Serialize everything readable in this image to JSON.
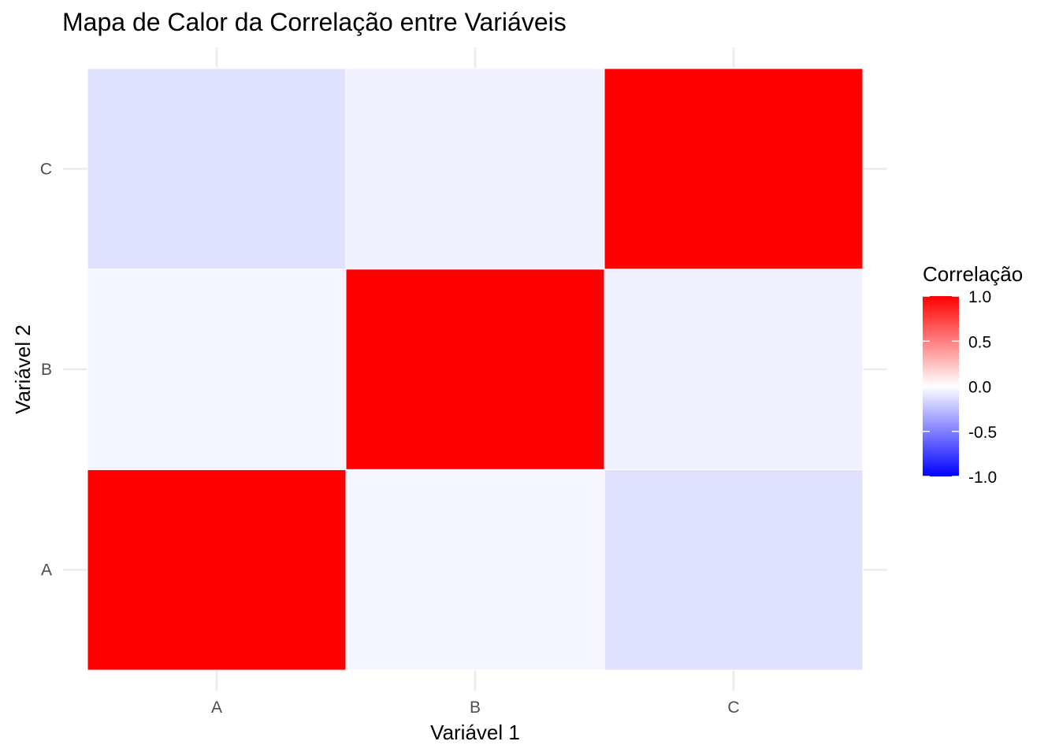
{
  "chart_data": {
    "type": "heatmap",
    "title": "Mapa de Calor da Correlação entre Variáveis",
    "xlabel": "Variável 1",
    "ylabel": "Variável 2",
    "x_categories": [
      "A",
      "B",
      "C"
    ],
    "y_categories": [
      "A",
      "B",
      "C"
    ],
    "cells": [
      {
        "x": "A",
        "y": "A",
        "value": 1.0
      },
      {
        "x": "B",
        "y": "A",
        "value": -0.04
      },
      {
        "x": "C",
        "y": "A",
        "value": -0.12
      },
      {
        "x": "A",
        "y": "B",
        "value": -0.04
      },
      {
        "x": "B",
        "y": "B",
        "value": 1.0
      },
      {
        "x": "C",
        "y": "B",
        "value": -0.06
      },
      {
        "x": "A",
        "y": "C",
        "value": -0.12
      },
      {
        "x": "B",
        "y": "C",
        "value": -0.06
      },
      {
        "x": "C",
        "y": "C",
        "value": 1.0
      }
    ],
    "legend": {
      "title": "Correlação",
      "placement": "right",
      "ticks": [
        "1.0",
        "0.5",
        "0.0",
        "-0.5",
        "-1.0"
      ],
      "tick_values": [
        1.0,
        0.5,
        0.0,
        -0.5,
        -1.0
      ],
      "limits": [
        -1.0,
        1.0
      ]
    },
    "colors": {
      "low": "#0000ff",
      "mid": "#ffffff",
      "high": "#ff0000"
    },
    "grid": true
  }
}
